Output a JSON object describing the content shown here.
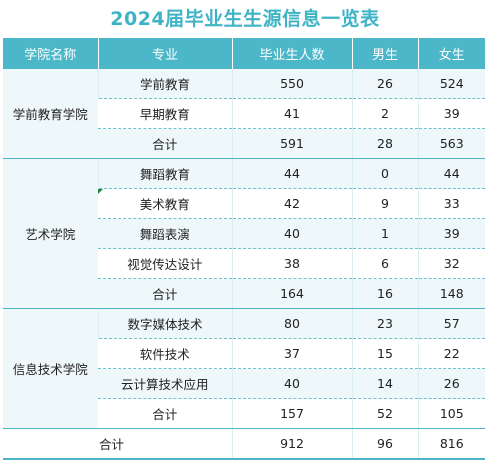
{
  "title": "2024届毕业生生源信息一览表",
  "headers": {
    "school": "学院名称",
    "major": "专业",
    "total": "毕业生人数",
    "male": "男生",
    "female": "女生"
  },
  "schools": [
    {
      "name": "学前教育学院",
      "rows": [
        {
          "major": "学前教育",
          "total": "550",
          "male": "26",
          "female": "524"
        },
        {
          "major": "早期教育",
          "total": "41",
          "male": "2",
          "female": "39"
        },
        {
          "major": "合计",
          "total": "591",
          "male": "28",
          "female": "563"
        }
      ]
    },
    {
      "name": "艺术学院",
      "rows": [
        {
          "major": "舞蹈教育",
          "total": "44",
          "male": "0",
          "female": "44"
        },
        {
          "major": "美术教育",
          "total": "42",
          "male": "9",
          "female": "33"
        },
        {
          "major": "舞蹈表演",
          "total": "40",
          "male": "1",
          "female": "39"
        },
        {
          "major": "视觉传达设计",
          "total": "38",
          "male": "6",
          "female": "32"
        },
        {
          "major": "合计",
          "total": "164",
          "male": "16",
          "female": "148"
        }
      ]
    },
    {
      "name": "信息技术学院",
      "rows": [
        {
          "major": "数字媒体技术",
          "total": "80",
          "male": "23",
          "female": "57"
        },
        {
          "major": "软件技术",
          "total": "37",
          "male": "15",
          "female": "22"
        },
        {
          "major": "云计算技术应用",
          "total": "40",
          "male": "14",
          "female": "26"
        },
        {
          "major": "合计",
          "total": "157",
          "male": "52",
          "female": "105"
        }
      ]
    }
  ],
  "grand_total": {
    "label": "合计",
    "total": "912",
    "male": "96",
    "female": "816"
  },
  "colors": {
    "accent": "#4bb7c8",
    "title": "#3fb3c6",
    "row_alt": "#eef8fa"
  }
}
